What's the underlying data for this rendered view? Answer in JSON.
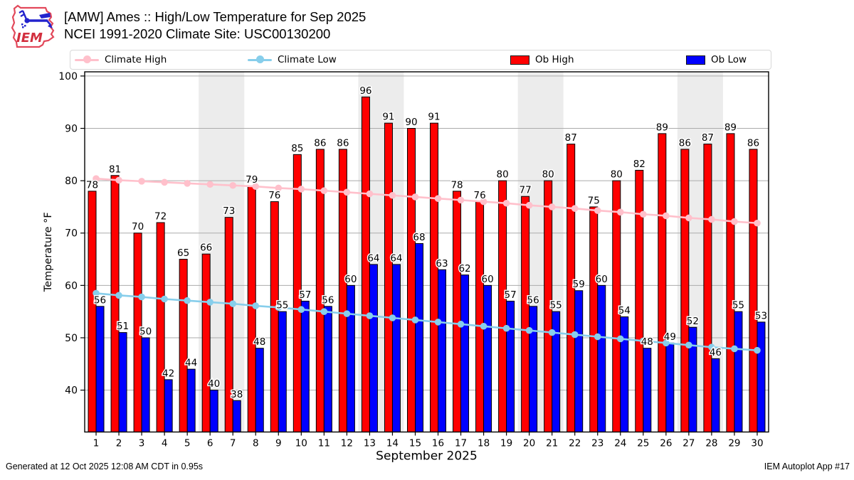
{
  "header": {
    "title_line1": "[AMW] Ames :: High/Low Temperature for Sep 2025",
    "title_line2": "NCEI 1991-2020 Climate Site: USC00130200",
    "logo_text": "IEM"
  },
  "legend": {
    "items": [
      {
        "label": "Climate High",
        "type": "line",
        "color": "#ffc0cb"
      },
      {
        "label": "Climate Low",
        "type": "line",
        "color": "#87ceeb"
      },
      {
        "label": "Ob High",
        "type": "rect",
        "color": "#ff0000"
      },
      {
        "label": "Ob Low",
        "type": "rect",
        "color": "#0000ff"
      }
    ]
  },
  "footer": {
    "left": "Generated at 12 Oct 2025 12:08 AM CDT in 0.95s",
    "right": "IEM Autoplot App #17"
  },
  "chart_data": {
    "type": "bar",
    "x": [
      1,
      2,
      3,
      4,
      5,
      6,
      7,
      8,
      9,
      10,
      11,
      12,
      13,
      14,
      15,
      16,
      17,
      18,
      19,
      20,
      21,
      22,
      23,
      24,
      25,
      26,
      27,
      28,
      29,
      30
    ],
    "series": [
      {
        "name": "Ob High",
        "type": "bar",
        "color": "#ff0000",
        "values": [
          78,
          81,
          70,
          72,
          65,
          66,
          73,
          79,
          76,
          85,
          86,
          86,
          96,
          91,
          90,
          91,
          78,
          76,
          80,
          77,
          80,
          87,
          75,
          80,
          82,
          89,
          86,
          87,
          89,
          86
        ]
      },
      {
        "name": "Ob Low",
        "type": "bar",
        "color": "#0000ff",
        "values": [
          56,
          51,
          50,
          42,
          44,
          40,
          38,
          48,
          55,
          57,
          56,
          60,
          64,
          64,
          68,
          63,
          62,
          60,
          57,
          56,
          55,
          59,
          60,
          54,
          48,
          49,
          52,
          46,
          55,
          53
        ]
      },
      {
        "name": "Climate High",
        "type": "line",
        "color": "#ffc0cb",
        "values": [
          80.4,
          80.1,
          79.9,
          79.7,
          79.5,
          79.3,
          79.1,
          78.9,
          78.6,
          78.4,
          78.1,
          77.8,
          77.5,
          77.2,
          76.9,
          76.6,
          76.3,
          76.0,
          75.7,
          75.3,
          75.0,
          74.7,
          74.3,
          74.0,
          73.6,
          73.3,
          72.9,
          72.6,
          72.2,
          71.9
        ]
      },
      {
        "name": "Climate Low",
        "type": "line",
        "color": "#87ceeb",
        "values": [
          58.5,
          58.1,
          57.8,
          57.4,
          57.1,
          56.8,
          56.5,
          56.1,
          55.8,
          55.4,
          55.0,
          54.6,
          54.2,
          53.8,
          53.4,
          53.0,
          52.6,
          52.2,
          51.8,
          51.4,
          51.0,
          50.6,
          50.2,
          49.8,
          49.4,
          49.0,
          48.6,
          48.2,
          47.9,
          47.6
        ]
      }
    ],
    "xlabel": "September 2025",
    "ylabel": "Temperature °F",
    "yticks": [
      40,
      50,
      60,
      70,
      80,
      90,
      100
    ],
    "ylim": [
      32,
      100.8
    ],
    "grid": true,
    "legend_position": "top",
    "weekend_bands": [
      [
        6,
        7
      ],
      [
        13,
        14
      ],
      [
        20,
        21
      ],
      [
        27,
        28
      ]
    ],
    "band_color": "#ececec",
    "grid_color": "#ababab",
    "bar_label_color": "#000000"
  }
}
